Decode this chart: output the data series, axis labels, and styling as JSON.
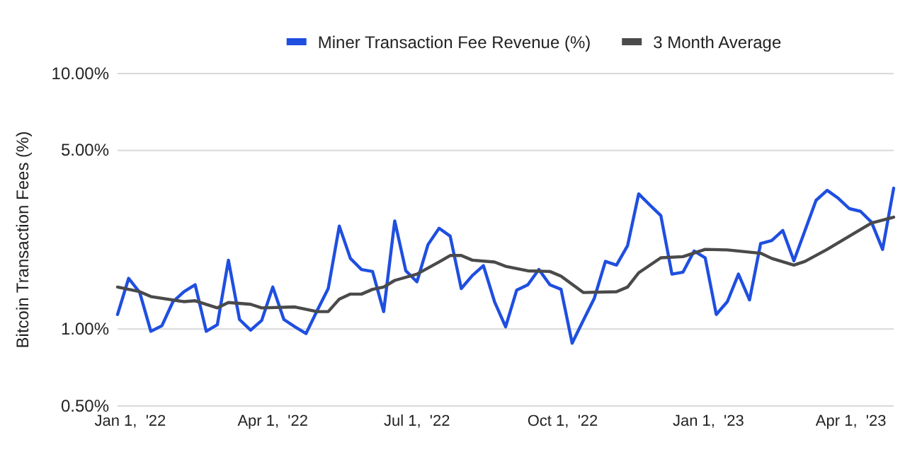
{
  "chart_data": {
    "type": "line",
    "ylabel": "Bitcoin Transaction Fees (%)",
    "log": "y",
    "grid": "y",
    "legend": "top",
    "marker": "none",
    "line_style": "solid",
    "xlim": [
      "2021-12-24",
      "2023-04-28"
    ],
    "xticks": [
      {
        "value": "2022-01-01",
        "label": "Jan 1,  '22"
      },
      {
        "value": "2022-04-01",
        "label": "Apr 1,  '22"
      },
      {
        "value": "2022-07-01",
        "label": "Jul 1,  '22"
      },
      {
        "value": "2022-10-01",
        "label": "Oct 1,  '22"
      },
      {
        "value": "2023-01-01",
        "label": "Jan 1,  '23"
      },
      {
        "value": "2023-04-01",
        "label": "Apr 1,  '23"
      }
    ],
    "ylim": [
      0.5,
      10
    ],
    "yticks": [
      {
        "value": 0.5,
        "label": "0.50%"
      },
      {
        "value": 1,
        "label": "1.00%"
      },
      {
        "value": 5,
        "label": "5.00%"
      },
      {
        "value": 10,
        "label": "10.00%"
      }
    ],
    "series": [
      {
        "name": "Miner Transaction Fee Revenue (%)",
        "color": "#1f4fe0",
        "x": [
          "2021-12-24",
          "2021-12-31",
          "2022-01-07",
          "2022-01-14",
          "2022-01-21",
          "2022-01-28",
          "2022-02-04",
          "2022-02-11",
          "2022-02-18",
          "2022-02-25",
          "2022-03-04",
          "2022-03-11",
          "2022-03-18",
          "2022-03-25",
          "2022-04-01",
          "2022-04-08",
          "2022-04-15",
          "2022-04-22",
          "2022-04-29",
          "2022-05-06",
          "2022-05-13",
          "2022-05-20",
          "2022-05-27",
          "2022-06-03",
          "2022-06-10",
          "2022-06-17",
          "2022-06-24",
          "2022-07-01",
          "2022-07-08",
          "2022-07-15",
          "2022-07-22",
          "2022-07-29",
          "2022-08-05",
          "2022-08-12",
          "2022-08-19",
          "2022-08-26",
          "2022-09-02",
          "2022-09-09",
          "2022-09-16",
          "2022-09-23",
          "2022-09-30",
          "2022-10-07",
          "2022-10-14",
          "2022-10-21",
          "2022-10-28",
          "2022-11-04",
          "2022-11-11",
          "2022-11-18",
          "2022-11-25",
          "2022-12-02",
          "2022-12-09",
          "2022-12-16",
          "2022-12-23",
          "2022-12-30",
          "2023-01-06",
          "2023-01-13",
          "2023-01-20",
          "2023-01-27",
          "2023-02-03",
          "2023-02-10",
          "2023-02-17",
          "2023-02-24",
          "2023-03-03",
          "2023-03-10",
          "2023-03-17",
          "2023-03-24",
          "2023-03-31",
          "2023-04-07",
          "2023-04-14",
          "2023-04-21",
          "2023-04-28"
        ],
        "values": [
          1.14,
          1.58,
          1.39,
          0.98,
          1.03,
          1.28,
          1.4,
          1.49,
          0.98,
          1.04,
          1.86,
          1.09,
          0.99,
          1.08,
          1.46,
          1.09,
          1.02,
          0.96,
          1.18,
          1.44,
          2.53,
          1.89,
          1.71,
          1.68,
          1.17,
          2.65,
          1.69,
          1.53,
          2.14,
          2.48,
          2.31,
          1.44,
          1.62,
          1.77,
          1.28,
          1.02,
          1.42,
          1.49,
          1.71,
          1.49,
          1.43,
          0.88,
          1.08,
          1.32,
          1.84,
          1.78,
          2.12,
          3.38,
          3.06,
          2.78,
          1.64,
          1.67,
          2.02,
          1.9,
          1.14,
          1.28,
          1.64,
          1.3,
          2.16,
          2.22,
          2.43,
          1.85,
          2.43,
          3.19,
          3.49,
          3.25,
          2.96,
          2.89,
          2.62,
          2.05,
          3.56
        ]
      },
      {
        "name": "3 Month Average",
        "color": "#4a4a4a",
        "x": [
          "2021-12-24",
          "2022-01-07",
          "2022-01-14",
          "2022-02-04",
          "2022-02-11",
          "2022-02-25",
          "2022-03-04",
          "2022-03-18",
          "2022-03-25",
          "2022-04-15",
          "2022-04-29",
          "2022-05-06",
          "2022-05-13",
          "2022-05-20",
          "2022-05-27",
          "2022-06-03",
          "2022-06-10",
          "2022-06-17",
          "2022-07-01",
          "2022-07-15",
          "2022-07-22",
          "2022-07-29",
          "2022-08-05",
          "2022-08-19",
          "2022-08-26",
          "2022-09-09",
          "2022-09-23",
          "2022-09-30",
          "2022-10-14",
          "2022-11-04",
          "2022-11-11",
          "2022-11-18",
          "2022-12-02",
          "2022-12-16",
          "2022-12-30",
          "2023-01-13",
          "2023-02-03",
          "2023-02-10",
          "2023-02-24",
          "2023-03-03",
          "2023-03-17",
          "2023-04-07",
          "2023-04-14",
          "2023-04-28"
        ],
        "values": [
          1.46,
          1.4,
          1.34,
          1.28,
          1.29,
          1.21,
          1.27,
          1.25,
          1.21,
          1.22,
          1.17,
          1.17,
          1.31,
          1.37,
          1.37,
          1.43,
          1.46,
          1.55,
          1.64,
          1.83,
          1.94,
          1.94,
          1.86,
          1.83,
          1.76,
          1.69,
          1.68,
          1.61,
          1.39,
          1.4,
          1.46,
          1.66,
          1.9,
          1.92,
          2.05,
          2.04,
          1.98,
          1.89,
          1.78,
          1.84,
          2.05,
          2.45,
          2.6,
          2.74
        ]
      }
    ]
  }
}
